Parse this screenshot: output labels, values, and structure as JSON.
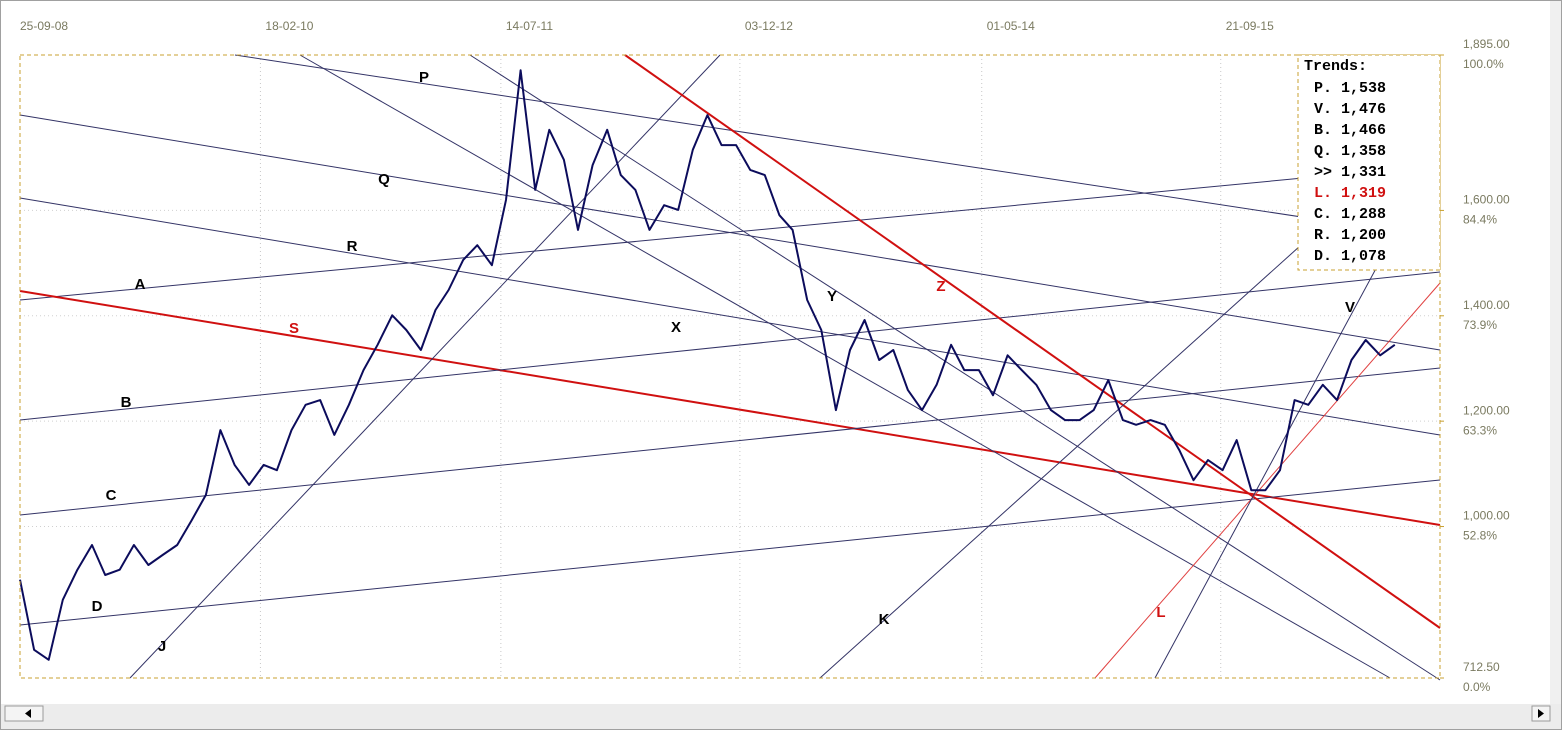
{
  "chart_data": {
    "type": "line",
    "x": [
      "25-09-08",
      "25-10-08",
      "25-11-08",
      "25-12-08",
      "25-01-09",
      "25-02-09",
      "25-03-09",
      "25-04-09",
      "25-05-09",
      "25-06-09",
      "25-07-09",
      "25-08-09",
      "25-09-09",
      "25-10-09",
      "25-11-09",
      "25-12-09",
      "25-01-10",
      "25-02-10",
      "25-03-10",
      "25-04-10",
      "25-05-10",
      "25-06-10",
      "25-07-10",
      "25-08-10",
      "25-09-10",
      "25-10-10",
      "25-11-10",
      "25-12-10",
      "25-01-11",
      "25-02-11",
      "25-03-11",
      "25-04-11",
      "25-05-11",
      "25-06-11",
      "25-07-11",
      "25-08-11",
      "25-09-11",
      "25-10-11",
      "25-11-11",
      "25-12-11",
      "25-01-12",
      "25-02-12",
      "25-03-12",
      "25-04-12",
      "25-05-12",
      "25-06-12",
      "25-07-12",
      "25-08-12",
      "25-09-12",
      "25-10-12",
      "25-11-12",
      "25-12-12",
      "25-01-13",
      "25-02-13",
      "25-03-13",
      "25-04-13",
      "25-05-13",
      "25-06-13",
      "25-07-13",
      "25-08-13",
      "25-09-13",
      "25-10-13",
      "25-11-13",
      "25-12-13",
      "25-01-14",
      "25-02-14",
      "25-03-14",
      "25-04-14",
      "25-05-14",
      "25-06-14",
      "25-07-14",
      "25-08-14",
      "25-09-14",
      "25-10-14",
      "25-11-14",
      "25-12-14",
      "25-01-15",
      "25-02-15",
      "25-03-15",
      "25-04-15",
      "25-05-15",
      "25-06-15",
      "25-07-15",
      "25-08-15",
      "25-09-15",
      "25-10-15",
      "25-11-15",
      "25-12-15",
      "25-01-16",
      "25-02-16",
      "25-03-16",
      "25-04-16",
      "25-05-16",
      "25-06-16",
      "25-07-16",
      "25-08-16",
      "25-09-16"
    ],
    "series": [
      {
        "color": "#0c0c5c",
        "values": [
          899,
          766,
          747,
          861,
          918,
          965,
          908,
          918,
          965,
          927,
          946,
          965,
          1012,
          1060,
          1183,
          1117,
          1079,
          1117,
          1107,
          1183,
          1231,
          1240,
          1174,
          1231,
          1297,
          1345,
          1401,
          1373,
          1335,
          1411,
          1449,
          1506,
          1534,
          1496,
          1620,
          1866,
          1639,
          1753,
          1696,
          1563,
          1686,
          1753,
          1667,
          1639,
          1563,
          1610,
          1601,
          1715,
          1781,
          1724,
          1724,
          1677,
          1667,
          1591,
          1563,
          1430,
          1373,
          1221,
          1335,
          1392,
          1316,
          1335,
          1259,
          1221,
          1269,
          1345,
          1297,
          1297,
          1249,
          1325,
          1297,
          1269,
          1221,
          1202,
          1202,
          1221,
          1278,
          1202,
          1193,
          1202,
          1193,
          1145,
          1088,
          1126,
          1107,
          1164,
          1069,
          1069,
          1107,
          1240,
          1231,
          1269,
          1240,
          1316,
          1354,
          1325,
          1345
        ]
      }
    ],
    "xlim": [
      "25-09-08",
      "30-12-16"
    ],
    "xticks": [
      "25-09-08",
      "18-02-10",
      "14-07-11",
      "03-12-12",
      "01-05-14",
      "21-09-15"
    ],
    "ylim": [
      712.5,
      1895
    ],
    "yticks": [
      {
        "value": 1895,
        "label": "1,895.00"
      },
      {
        "value": 1600,
        "label": "1,600.00"
      },
      {
        "value": 1400,
        "label": "1,400.00"
      },
      {
        "value": 1200,
        "label": "1,200.00"
      },
      {
        "value": 1000,
        "label": "1,000.00"
      },
      {
        "value": 712.5,
        "label": "712.50"
      }
    ],
    "ytick_percent_labels": [
      "100.0%",
      "84.4%",
      "73.9%",
      "63.3%",
      "52.8%",
      "0.0%"
    ],
    "grid": true,
    "trend_labels": [
      {
        "text": "P",
        "color": "#000000"
      },
      {
        "text": "Q",
        "color": "#000000"
      },
      {
        "text": "R",
        "color": "#000000"
      },
      {
        "text": "A",
        "color": "#000000"
      },
      {
        "text": "S",
        "color": "#d01010"
      },
      {
        "text": "B",
        "color": "#000000"
      },
      {
        "text": "C",
        "color": "#000000"
      },
      {
        "text": "D",
        "color": "#000000"
      },
      {
        "text": "J",
        "color": "#000000"
      },
      {
        "text": "X",
        "color": "#000000"
      },
      {
        "text": "Y",
        "color": "#000000"
      },
      {
        "text": "Z",
        "color": "#d01010"
      },
      {
        "text": "K",
        "color": "#000000"
      },
      {
        "text": "L",
        "color": "#d01010"
      },
      {
        "text": "V",
        "color": "#000000"
      }
    ],
    "trends_box": {
      "title": "Trends:",
      "rows": [
        {
          "text": "P. 1,538",
          "color": "#000000"
        },
        {
          "text": "V. 1,476",
          "color": "#000000"
        },
        {
          "text": "B. 1,466",
          "color": "#000000"
        },
        {
          "text": "Q. 1,358",
          "color": "#000000"
        },
        {
          "text": ">> 1,331",
          "color": "#000000"
        },
        {
          "text": "L. 1,319",
          "color": "#d01010"
        },
        {
          "text": "C. 1,288",
          "color": "#000000"
        },
        {
          "text": "R. 1,200",
          "color": "#000000"
        },
        {
          "text": "D. 1,078",
          "color": "#000000"
        }
      ]
    }
  }
}
